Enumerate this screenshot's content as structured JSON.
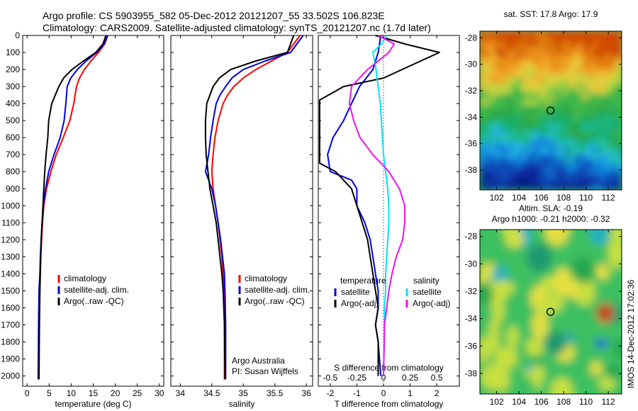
{
  "header": {
    "line1": "Argo profile: CS 5903955_582 05-Dec-2012 20121207_55 33.502S 106.823E",
    "line2": "Climatology: CARS2009. Satellite-adjusted climatology: synTS_20121207.nc (1.7d later)"
  },
  "colors": {
    "climatology": "#ff0000",
    "satellite": "#0000dd",
    "argo": "#000000",
    "sat_sal": "#00e5f0",
    "argo_sal": "#ee11ee"
  },
  "depth_ticks": [
    0,
    100,
    200,
    300,
    400,
    500,
    600,
    700,
    800,
    900,
    1000,
    1100,
    1200,
    1300,
    1400,
    1500,
    1600,
    1700,
    1800,
    1900,
    2000
  ],
  "chart_data": [
    {
      "id": "temperature",
      "type": "line",
      "xlabel": "temperature (deg C)",
      "xlim": [
        -1,
        31
      ],
      "ylim": [
        2060,
        0
      ],
      "xticks": [
        0,
        5,
        10,
        15,
        20,
        25,
        30
      ],
      "xtick_labels": [
        "0",
        "5",
        "10",
        "15",
        "20",
        "25",
        "30"
      ],
      "legend": [
        "climatology",
        "satellite-adj. clim.",
        "Argo(..raw -QC)"
      ],
      "series": [
        {
          "name": "climatology",
          "color": "climatology",
          "x": [
            18.3,
            17.6,
            16.2,
            14.5,
            13,
            11.9,
            11.2,
            10.6,
            9.7,
            8.2,
            6.6,
            5.4,
            4.4,
            3.8,
            3.5,
            3.3,
            3.1,
            2.9,
            2.8,
            2.7,
            2.6
          ],
          "y": [
            0,
            50,
            100,
            150,
            200,
            250,
            300,
            400,
            500,
            600,
            700,
            800,
            900,
            1000,
            1100,
            1200,
            1300,
            1400,
            1500,
            1700,
            2020
          ]
        },
        {
          "name": "satellite-adj. clim.",
          "color": "satellite",
          "x": [
            18.3,
            17.5,
            15.8,
            13.4,
            11.4,
            9.9,
            9.1,
            8.8,
            8.4,
            7.5,
            6.1,
            4.9,
            4.2,
            3.7,
            3.4,
            3.2,
            3.0,
            2.9,
            2.7,
            2.6,
            2.5
          ],
          "y": [
            0,
            50,
            100,
            150,
            200,
            250,
            300,
            400,
            500,
            600,
            700,
            800,
            900,
            1000,
            1100,
            1200,
            1300,
            1400,
            1500,
            1700,
            2020
          ]
        },
        {
          "name": "Argo(..raw -QC)",
          "color": "argo",
          "x": [
            17.9,
            17.2,
            15.6,
            12.8,
            10.2,
            8.3,
            7.2,
            5.6,
            4.9,
            4.7,
            4.3,
            4.0,
            3.8,
            3.6,
            3.4,
            3.2,
            3.1,
            3.0,
            2.9,
            2.8,
            2.7
          ],
          "y": [
            0,
            50,
            100,
            150,
            200,
            250,
            300,
            400,
            500,
            600,
            700,
            800,
            900,
            1000,
            1100,
            1200,
            1300,
            1400,
            1500,
            1700,
            2020
          ]
        }
      ]
    },
    {
      "id": "salinity",
      "type": "line",
      "xlabel": "salinity",
      "xlim": [
        33.85,
        36.1
      ],
      "ylim": [
        2060,
        0
      ],
      "xticks": [
        34,
        34.5,
        35,
        35.5,
        36
      ],
      "xtick_labels": [
        "34",
        "34.5",
        "35",
        "35.5",
        "36"
      ],
      "legend": [
        "climatology",
        "satellite-adj. clim.",
        "Argo(..raw -QC)"
      ],
      "annotations": [
        "Argo Australia",
        "PI: Susan Wijffels"
      ],
      "series": [
        {
          "name": "climatology",
          "color": "climatology",
          "x": [
            35.9,
            35.8,
            35.7,
            35.45,
            35.2,
            35.0,
            34.85,
            34.75,
            34.68,
            34.6,
            34.55,
            34.52,
            34.5,
            34.52,
            34.56,
            34.6,
            34.63,
            34.66,
            34.68,
            34.69,
            34.7,
            34.7
          ],
          "y": [
            0,
            50,
            100,
            150,
            200,
            250,
            300,
            350,
            400,
            500,
            600,
            700,
            800,
            900,
            1000,
            1100,
            1200,
            1300,
            1400,
            1500,
            1700,
            2020
          ]
        },
        {
          "name": "satellite-adj. clim.",
          "color": "satellite",
          "x": [
            35.95,
            35.85,
            35.75,
            35.35,
            35.0,
            34.82,
            34.72,
            34.63,
            34.57,
            34.52,
            34.48,
            34.45,
            34.4,
            34.5,
            34.56,
            34.6,
            34.64,
            34.67,
            34.7,
            34.71,
            34.72,
            34.72
          ],
          "y": [
            0,
            50,
            100,
            150,
            200,
            250,
            300,
            350,
            400,
            500,
            600,
            700,
            800,
            900,
            1000,
            1100,
            1200,
            1300,
            1400,
            1500,
            1700,
            2020
          ]
        },
        {
          "name": "Argo(..raw -QC)",
          "color": "argo",
          "x": [
            35.8,
            35.75,
            35.7,
            35.2,
            34.8,
            34.62,
            34.52,
            34.47,
            34.42,
            34.4,
            34.4,
            34.41,
            34.44,
            34.47,
            34.52,
            34.57,
            34.6,
            34.63,
            34.66,
            34.68,
            34.7,
            34.71
          ],
          "y": [
            0,
            50,
            100,
            150,
            200,
            250,
            300,
            350,
            400,
            500,
            600,
            700,
            800,
            900,
            1000,
            1100,
            1200,
            1300,
            1400,
            1500,
            1700,
            2020
          ]
        }
      ]
    },
    {
      "id": "difference",
      "type": "line",
      "xlim": [
        -2.45,
        2.85
      ],
      "ylim": [
        2060,
        0
      ],
      "xticks": [
        -2,
        -1,
        0,
        1,
        2
      ],
      "xtick_labels": [
        "-2",
        "-1",
        "0",
        "1",
        "2"
      ],
      "s_ticks": [
        -0.5,
        -0.25,
        0,
        0.25,
        0.5
      ],
      "s_tick_labels": [
        "-0.5",
        "-0.25",
        "0",
        "0.25",
        "0.5"
      ],
      "xlabel": "T difference from climatology",
      "s_xlabel": "S difference from climatology",
      "legend_temperature": {
        "title": "temperature",
        "items": [
          "satellite",
          "Argo(-adj)"
        ]
      },
      "legend_salinity": {
        "title": "salinity",
        "items": [
          "satellite",
          "Argo(-adj)"
        ]
      },
      "series": [
        {
          "name": "temperature satellite",
          "color": "satellite",
          "x": [
            -0.1,
            -0.2,
            -0.4,
            -0.9,
            -1.2,
            -1.5,
            -1.9,
            -2.1,
            -2.0,
            -1.2,
            -1.0,
            -1.0,
            -0.7,
            -0.5,
            -0.4,
            -0.3,
            -0.2,
            -0.2,
            -0.3,
            -0.2,
            -0.1
          ],
          "y": [
            0,
            100,
            200,
            300,
            400,
            500,
            600,
            700,
            800,
            850,
            900,
            1000,
            1100,
            1200,
            1300,
            1400,
            1500,
            1600,
            1700,
            1800,
            2000
          ]
        },
        {
          "name": "temperature Argo(-adj)",
          "color": "argo",
          "x": [
            -0.3,
            0.8,
            2.1,
            1.4,
            0,
            -1.5,
            -2.4,
            -2.4,
            -2.4,
            -1.8,
            -1.2,
            -1.0,
            -0.8,
            -0.6,
            -0.5,
            -0.4,
            -0.3,
            -0.2,
            -0.3,
            -0.2,
            -0.2
          ],
          "y": [
            0,
            50,
            100,
            150,
            250,
            300,
            380,
            450,
            750,
            800,
            900,
            1000,
            1100,
            1200,
            1300,
            1400,
            1500,
            1600,
            1700,
            1800,
            2000
          ]
        },
        {
          "name": "salinity satellite",
          "color": "sat_sal",
          "x": [
            0.03,
            -0.02,
            -0.1,
            -0.07,
            -0.05,
            -0.03,
            -0.02,
            -0.01,
            0.0,
            0.02,
            0.04,
            0.05,
            0.05,
            0.04,
            0.03,
            0.02,
            0.02,
            0.01,
            0.01,
            0.0
          ],
          "y": [
            0,
            50,
            100,
            200,
            300,
            400,
            500,
            600,
            700,
            800,
            900,
            1000,
            1100,
            1200,
            1300,
            1400,
            1500,
            1600,
            1700,
            2000
          ]
        },
        {
          "name": "salinity Argo(-adj)",
          "color": "argo_sal",
          "x": [
            -0.05,
            0.1,
            0.05,
            -0.15,
            -0.3,
            -0.32,
            -0.28,
            -0.22,
            -0.1,
            0.05,
            0.15,
            0.2,
            0.2,
            0.18,
            0.12,
            0.08,
            0.05,
            0.03,
            0.01,
            0.0
          ],
          "y": [
            0,
            50,
            100,
            200,
            300,
            400,
            500,
            600,
            700,
            800,
            900,
            1000,
            1100,
            1200,
            1300,
            1400,
            1500,
            1600,
            1700,
            2000
          ]
        }
      ]
    }
  ],
  "maps": [
    {
      "id": "sst_map",
      "title": "sat. SST: 17.8  Argo: 17.9",
      "lon_ticks": [
        102,
        104,
        106,
        108,
        110,
        112
      ],
      "lat_ticks": [
        -28,
        -30,
        -32,
        -34,
        -36,
        -38
      ],
      "lon_range": [
        100.5,
        113.2
      ],
      "lat_range": [
        -39.5,
        -27.5
      ],
      "marker": {
        "lon": 106.823,
        "lat": -33.502
      }
    },
    {
      "id": "sla_map",
      "title1": "Altim. SLA: -0.19",
      "title2": "Argo h1000: -0.21  h2000: -0.32",
      "lon_ticks": [
        102,
        104,
        106,
        108,
        110,
        112
      ],
      "lat_ticks": [
        -28,
        -30,
        -32,
        -34,
        -36,
        -38
      ],
      "lon_range": [
        100.5,
        113.2
      ],
      "lat_range": [
        -39.5,
        -27.5
      ],
      "marker": {
        "lon": 106.823,
        "lat": -33.502
      }
    }
  ],
  "footer_stamp": "IMOS 14-Dec-2012 17:02:36"
}
